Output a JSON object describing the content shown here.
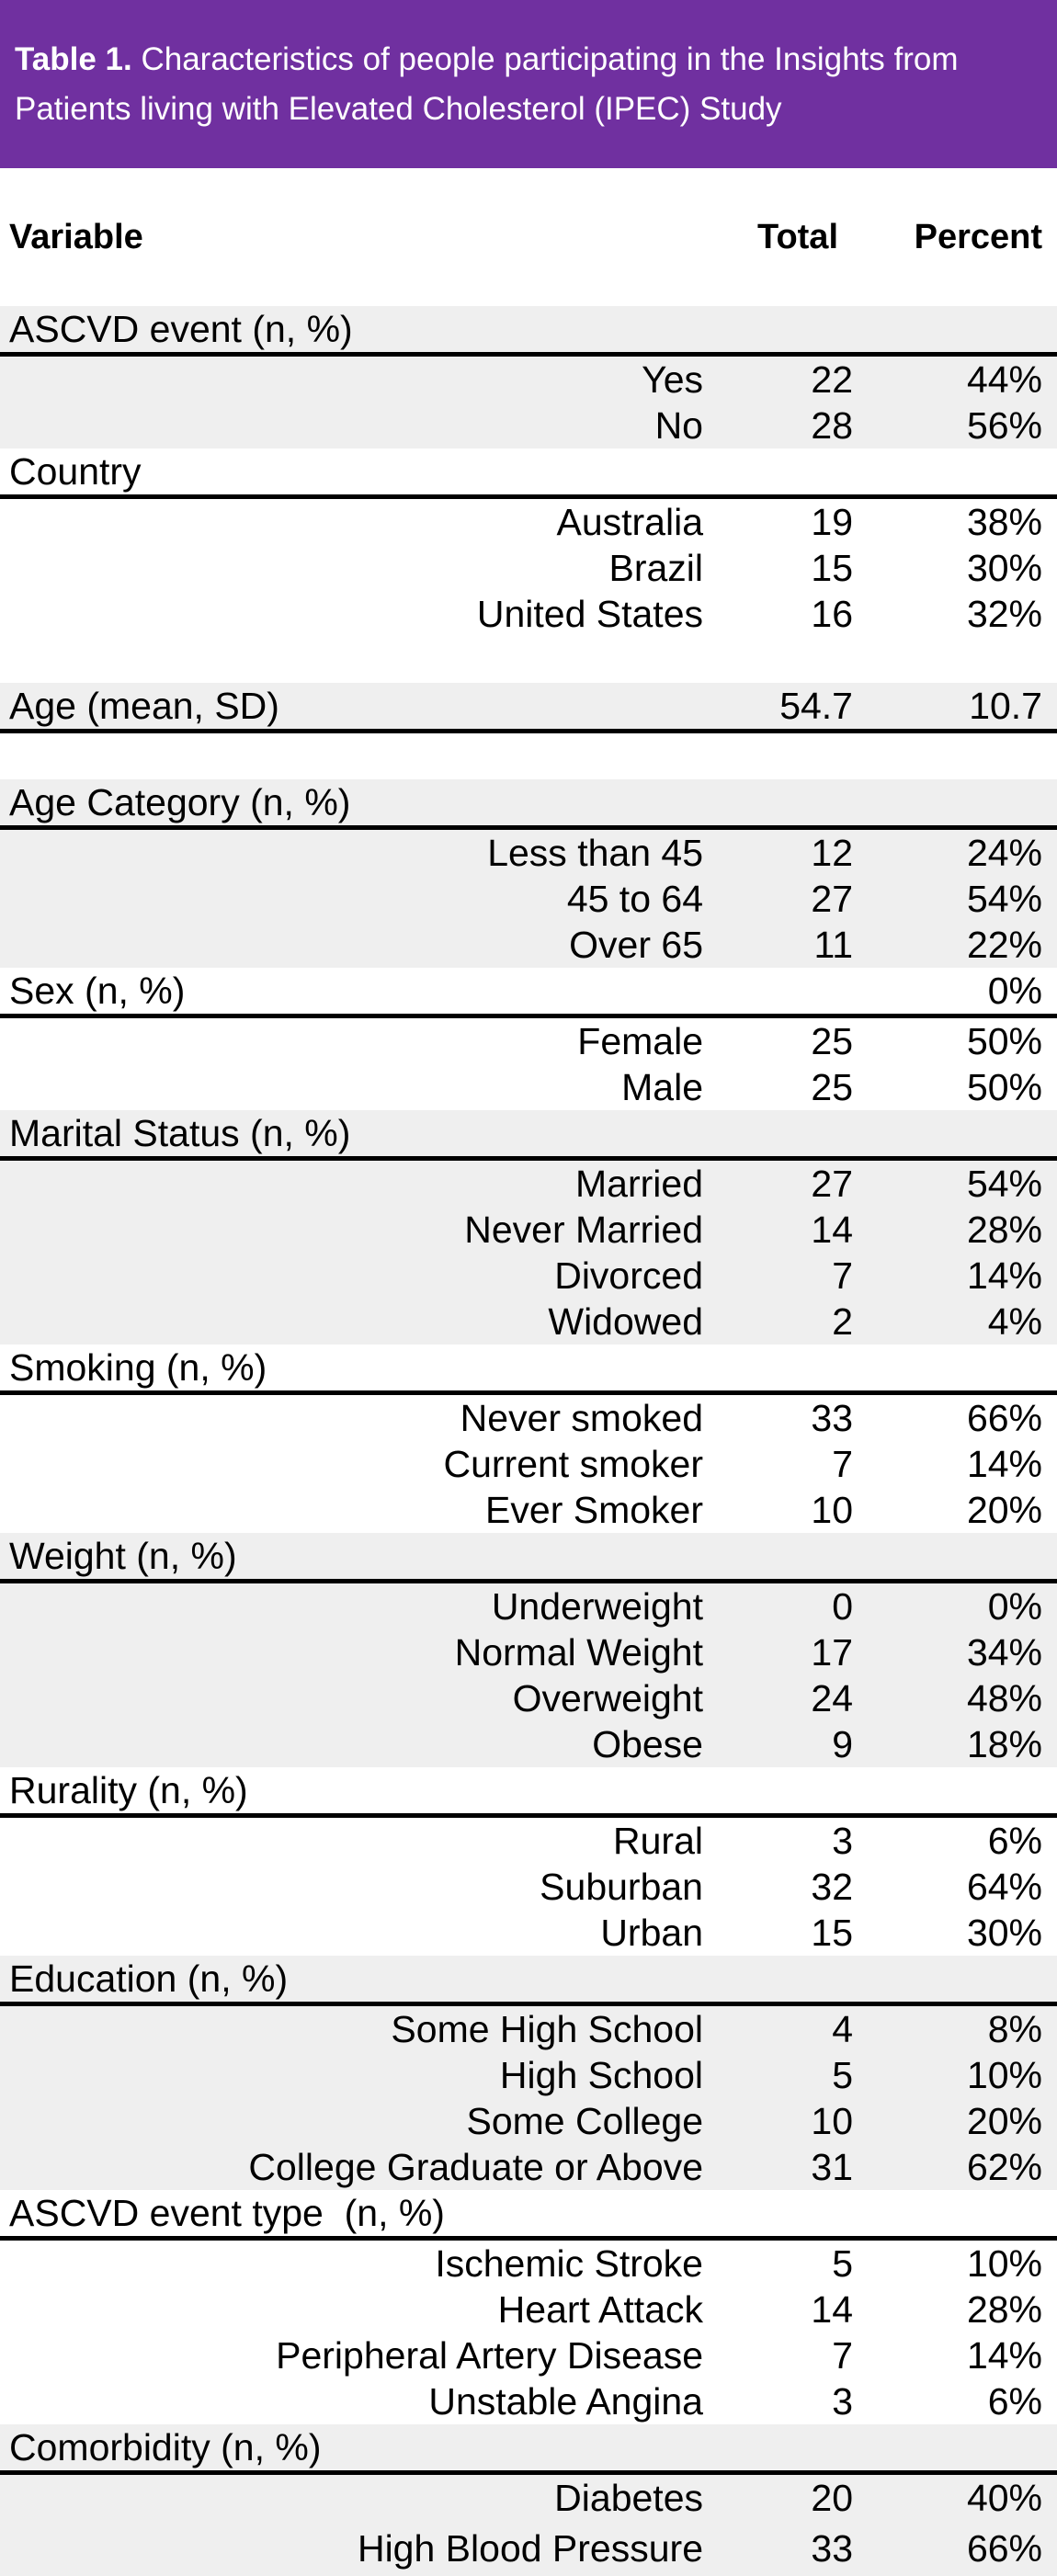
{
  "title": {
    "prefix": "Table 1.",
    "rest": " Characteristics of people participating in the Insights from Patients living with Elevated Cholesterol (IPEC) Study"
  },
  "columns": {
    "variable": "Variable",
    "total": "Total",
    "percent": "Percent"
  },
  "colors": {
    "banner_bg": "#7030A0",
    "banner_text": "#FFFFFF",
    "shaded_row_bg": "#EFEFEF",
    "plain_row_bg": "#FFFFFF",
    "section_divider": "#000000",
    "body_text": "#000000"
  },
  "sections": [
    {
      "label": "ASCVD event (n, %)",
      "shaded": true,
      "total": "",
      "percent": "",
      "rows": [
        {
          "label": "Yes",
          "total": "22",
          "percent": "44%"
        },
        {
          "label": "No",
          "total": "28",
          "percent": "56%"
        }
      ]
    },
    {
      "label": "Country",
      "shaded": false,
      "total": "",
      "percent": "",
      "rows": [
        {
          "label": "Australia",
          "total": "19",
          "percent": "38%"
        },
        {
          "label": "Brazil",
          "total": "15",
          "percent": "30%"
        },
        {
          "label": "United States",
          "total": "16",
          "percent": "32%"
        }
      ]
    },
    {
      "spacer": true
    },
    {
      "label": "Age (mean, SD)",
      "shaded": true,
      "total": "54.7",
      "percent": "10.7",
      "rows": []
    },
    {
      "spacer": true
    },
    {
      "label": "Age Category (n, %)",
      "shaded": true,
      "total": "",
      "percent": "",
      "rows": [
        {
          "label": "Less than 45",
          "total": "12",
          "percent": "24%"
        },
        {
          "label": "45 to 64",
          "total": "27",
          "percent": "54%"
        },
        {
          "label": "Over 65",
          "total": "11",
          "percent": "22%"
        }
      ]
    },
    {
      "label": "Sex (n, %)",
      "shaded": false,
      "total": "",
      "percent": "0%",
      "rows": [
        {
          "label": "Female",
          "total": "25",
          "percent": "50%"
        },
        {
          "label": "Male",
          "total": "25",
          "percent": "50%"
        }
      ]
    },
    {
      "label": "Marital Status (n, %)",
      "shaded": true,
      "total": "",
      "percent": "",
      "rows": [
        {
          "label": "Married",
          "total": "27",
          "percent": "54%"
        },
        {
          "label": "Never Married",
          "total": "14",
          "percent": "28%"
        },
        {
          "label": "Divorced",
          "total": "7",
          "percent": "14%"
        },
        {
          "label": "Widowed",
          "total": "2",
          "percent": "4%"
        }
      ]
    },
    {
      "label": "Smoking (n, %)",
      "shaded": false,
      "total": "",
      "percent": "",
      "rows": [
        {
          "label": "Never smoked",
          "total": "33",
          "percent": "66%"
        },
        {
          "label": "Current smoker",
          "total": "7",
          "percent": "14%"
        },
        {
          "label": "Ever Smoker",
          "total": "10",
          "percent": "20%"
        }
      ]
    },
    {
      "label": "Weight (n, %)",
      "shaded": true,
      "total": "",
      "percent": "",
      "rows": [
        {
          "label": "Underweight",
          "total": "0",
          "percent": "0%"
        },
        {
          "label": "Normal Weight",
          "total": "17",
          "percent": "34%"
        },
        {
          "label": "Overweight",
          "total": "24",
          "percent": "48%"
        },
        {
          "label": "Obese",
          "total": "9",
          "percent": "18%"
        }
      ]
    },
    {
      "label": "Rurality (n, %)",
      "shaded": false,
      "total": "",
      "percent": "",
      "rows": [
        {
          "label": "Rural",
          "total": "3",
          "percent": "6%"
        },
        {
          "label": "Suburban",
          "total": "32",
          "percent": "64%"
        },
        {
          "label": "Urban",
          "total": "15",
          "percent": "30%"
        }
      ]
    },
    {
      "label": "Education (n, %)",
      "shaded": true,
      "total": "",
      "percent": "",
      "rows": [
        {
          "label": "Some High School",
          "total": "4",
          "percent": "8%"
        },
        {
          "label": "High School",
          "total": "5",
          "percent": "10%"
        },
        {
          "label": "Some College",
          "total": "10",
          "percent": "20%"
        },
        {
          "label": "College Graduate or Above",
          "total": "31",
          "percent": "62%"
        }
      ]
    },
    {
      "label": "ASCVD event type  (n, %)",
      "shaded": false,
      "total": "",
      "percent": "",
      "rows": [
        {
          "label": "Ischemic Stroke",
          "total": "5",
          "percent": "10%"
        },
        {
          "label": "Heart Attack",
          "total": "14",
          "percent": "28%"
        },
        {
          "label": "Peripheral Artery Disease",
          "total": "7",
          "percent": "14%"
        },
        {
          "label": "Unstable Angina",
          "total": "3",
          "percent": "6%"
        }
      ]
    },
    {
      "label": "Comorbidity (n, %)",
      "shaded": true,
      "total": "",
      "percent": "",
      "rows": [
        {
          "label": "Diabetes",
          "total": "20",
          "percent": "40%"
        },
        {
          "label": "High Blood Pressure",
          "total": "33",
          "percent": "66%"
        }
      ]
    }
  ]
}
